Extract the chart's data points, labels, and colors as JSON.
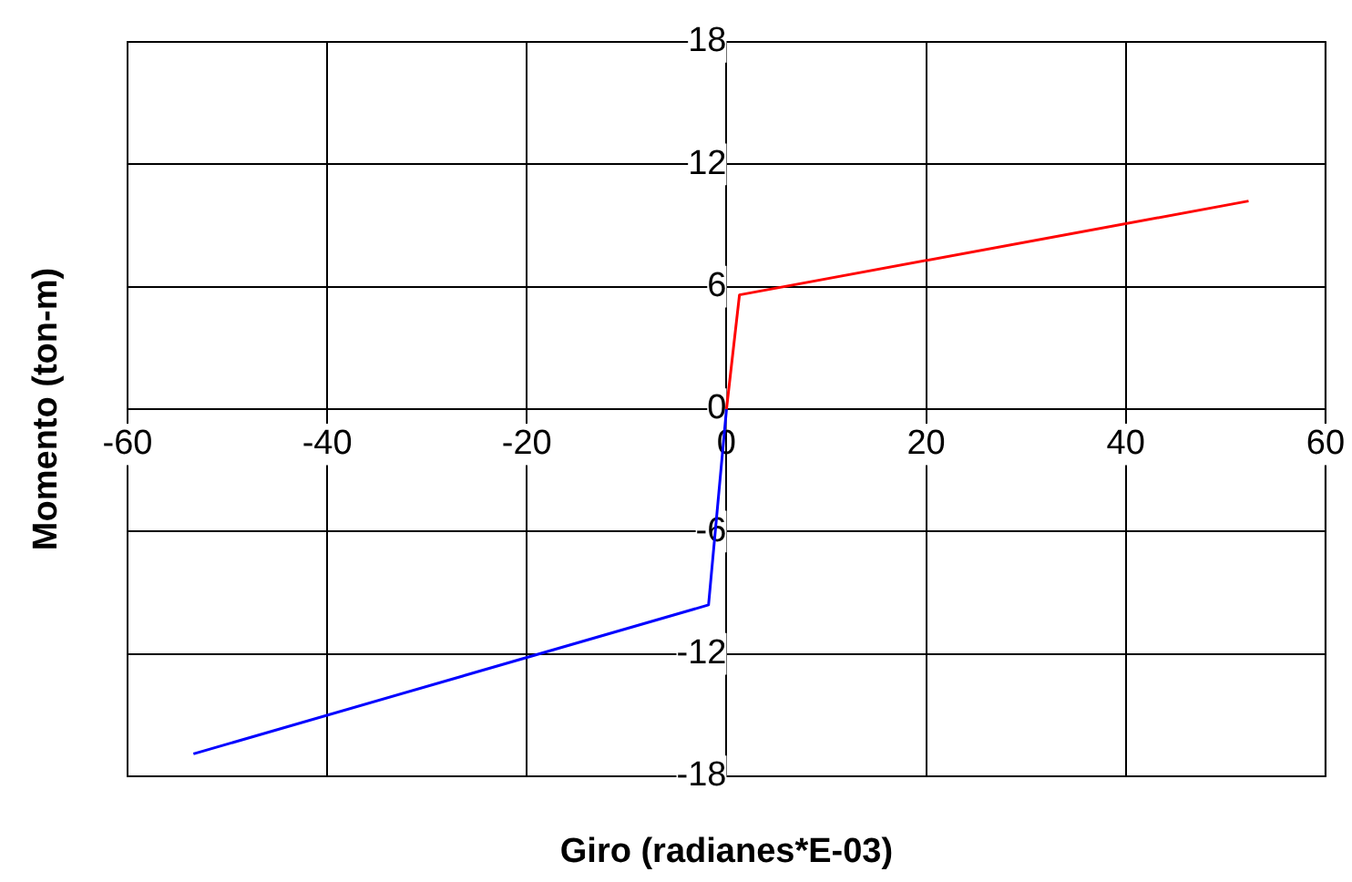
{
  "chart_data": {
    "type": "line",
    "xlabel": "Giro (radianes*E-03)",
    "ylabel": "Momento (ton-m)",
    "xlim": [
      -60,
      60
    ],
    "xticks": [
      -60,
      -40,
      -20,
      0,
      20,
      40,
      60
    ],
    "ylim": [
      -18,
      18
    ],
    "yticks": [
      -18,
      -12,
      -6,
      0,
      6,
      12,
      18
    ],
    "grid": true,
    "legend": false,
    "marker": "none",
    "series": [
      {
        "color": "#ff0000",
        "x": [
          0,
          1.3,
          52.3
        ],
        "values": [
          0,
          5.6,
          10.2
        ]
      },
      {
        "color": "#0000ff",
        "x": [
          0,
          -1.8,
          -53.4
        ],
        "values": [
          0,
          -9.6,
          -16.9
        ]
      }
    ]
  }
}
